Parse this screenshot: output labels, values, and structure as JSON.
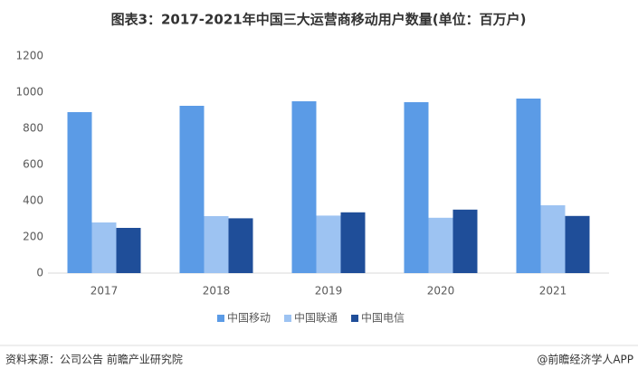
{
  "chart_data": {
    "type": "bar",
    "title": "图表3：2017-2021年中国三大运营商移动用户数量(单位：百万户)",
    "categories": [
      "2017",
      "2018",
      "2019",
      "2020",
      "2021"
    ],
    "series": [
      {
        "name": "中国移动",
        "color": "#5b9be6",
        "values": [
          890,
          925,
          950,
          945,
          965
        ]
      },
      {
        "name": "中国联通",
        "color": "#9dc3f2",
        "values": [
          280,
          315,
          318,
          306,
          375
        ]
      },
      {
        "name": "中国电信",
        "color": "#1f4e99",
        "values": [
          250,
          303,
          336,
          351,
          316
        ]
      }
    ],
    "ylim": [
      0,
      1200
    ],
    "yticks": [
      0,
      200,
      400,
      600,
      800,
      1000,
      1200
    ],
    "grid": false,
    "legend": "bottom",
    "source": "资料来源：公司公告 前瞻产业研究院",
    "credit": "@前瞻经济学人APP"
  }
}
